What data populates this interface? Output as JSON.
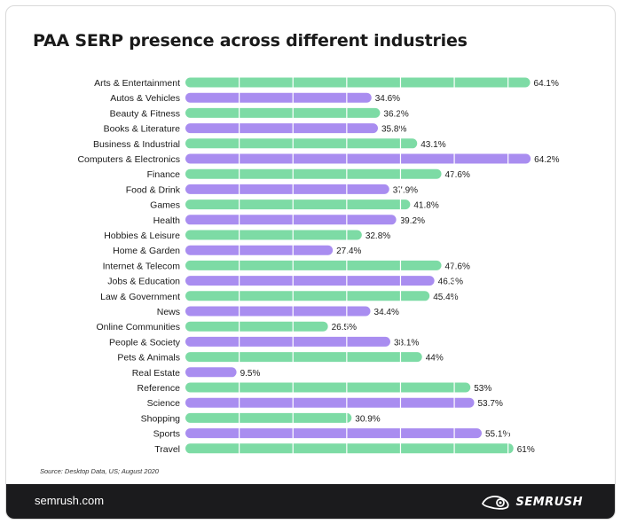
{
  "title": "PAA SERP presence across different industries",
  "source": "Source: Desktop Data, US; August 2020",
  "footer": {
    "site": "semrush.com",
    "brand": "SEMRUSH"
  },
  "colors": {
    "green": "#7ddba5",
    "purple": "#a98df0",
    "gridline": "#ffffff",
    "footer_bg": "#1b1b1d"
  },
  "chart_data": {
    "type": "bar",
    "orientation": "horizontal",
    "title": "PAA SERP presence across different industries",
    "xlim": [
      0,
      65
    ],
    "grid": true,
    "categories": [
      "Arts & Entertainment",
      "Autos & Vehicles",
      "Beauty & Fitness",
      "Books & Literature",
      "Business & Industrial",
      "Computers & Electronics",
      "Finance",
      "Food & Drink",
      "Games",
      "Health",
      "Hobbies & Leisure",
      "Home & Garden",
      "Internet & Telecom",
      "Jobs & Education",
      "Law & Government",
      "News",
      "Online Communities",
      "People & Society",
      "Pets & Animals",
      "Real Estate",
      "Reference",
      "Science",
      "Shopping",
      "Sports",
      "Travel"
    ],
    "values": [
      64.1,
      34.6,
      36.2,
      35.8,
      43.1,
      64.2,
      47.6,
      37.9,
      41.8,
      39.2,
      32.8,
      27.4,
      47.6,
      46.3,
      45.4,
      34.4,
      26.5,
      38.1,
      44,
      9.5,
      53,
      53.7,
      30.9,
      55.1,
      61
    ],
    "labels": [
      "64.1%",
      "34.6%",
      "36.2%",
      "35.8%",
      "43.1%",
      "64.2%",
      "47.6%",
      "37.9%",
      "41.8%",
      "39.2%",
      "32.8%",
      "27.4%",
      "47.6%",
      "46.3%",
      "45.4%",
      "34.4%",
      "26.5%",
      "38.1%",
      "44%",
      "9.5%",
      "53%",
      "53.7%",
      "30.9%",
      "55.1%",
      "61%"
    ],
    "bar_colors": [
      "green",
      "purple",
      "green",
      "purple",
      "green",
      "purple",
      "green",
      "purple",
      "green",
      "purple",
      "green",
      "purple",
      "green",
      "purple",
      "green",
      "purple",
      "green",
      "purple",
      "green",
      "purple",
      "green",
      "purple",
      "green",
      "purple",
      "green"
    ]
  }
}
